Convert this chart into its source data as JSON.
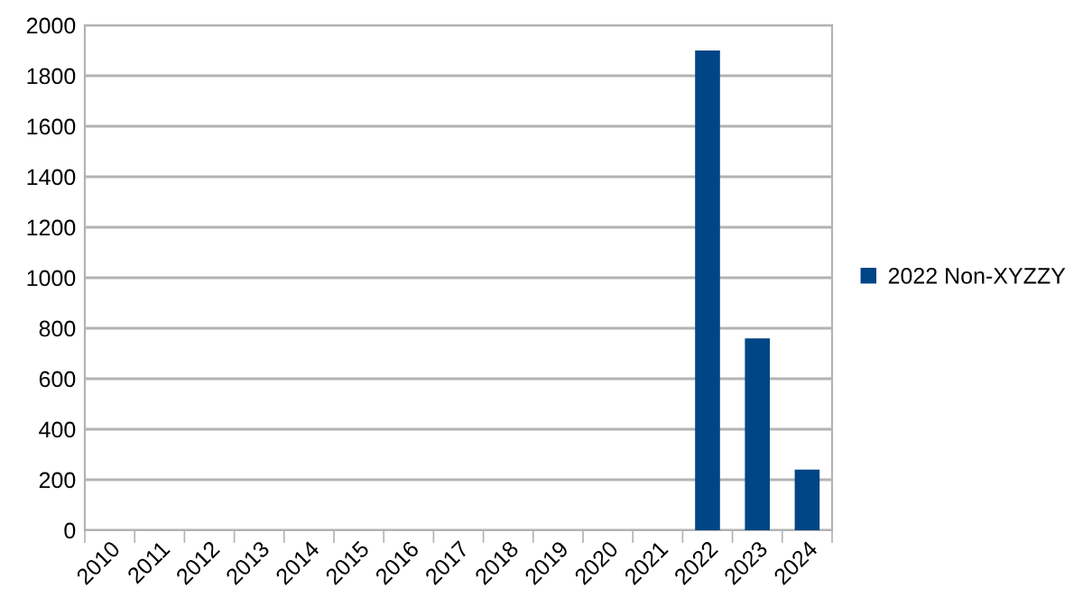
{
  "chart_data": {
    "type": "bar",
    "categories": [
      "2010",
      "2011",
      "2012",
      "2013",
      "2014",
      "2015",
      "2016",
      "2017",
      "2018",
      "2019",
      "2020",
      "2021",
      "2022",
      "2023",
      "2024"
    ],
    "series": [
      {
        "name": "2022 Non-XYZZY",
        "color": "#004586",
        "values": [
          null,
          null,
          null,
          null,
          null,
          null,
          null,
          null,
          null,
          null,
          null,
          null,
          1900,
          760,
          240
        ]
      }
    ],
    "ylim": [
      0,
      2000
    ],
    "yticks": [
      0,
      200,
      400,
      600,
      800,
      1000,
      1200,
      1400,
      1600,
      1800,
      2000
    ],
    "grid": "y",
    "legend": "right"
  }
}
